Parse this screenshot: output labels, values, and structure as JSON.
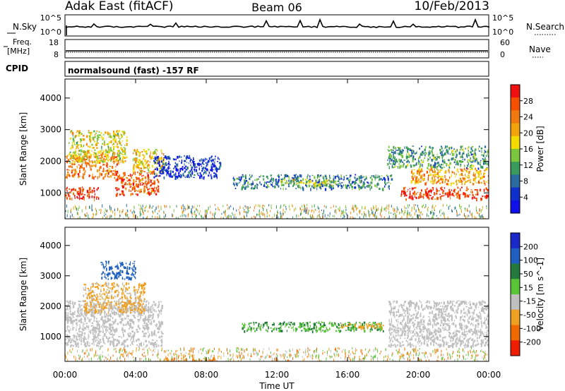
{
  "header": {
    "site": "Adak East (fitACF)",
    "beam": "Beam 06",
    "date": "10/Feb/2013"
  },
  "top_panels": {
    "nsky_label": "N.Sky",
    "nsearch_label": "N.Search",
    "nsky_ticks": [
      "10^5",
      "10^0"
    ],
    "nsearch_ticks": [
      "10^5",
      "10^0"
    ],
    "freq_label_line1": "Freq.",
    "freq_label_line2": "[MHz]",
    "freq_ticks": [
      "18",
      "8"
    ],
    "nave_label": "Nave",
    "nave_ticks": [
      "60",
      "0"
    ],
    "cpid_label": "CPID",
    "cpid_text": "normalsound (fast) -157 RF"
  },
  "x_axis": {
    "label": "Time UT",
    "ticks": [
      "00:00",
      "04:00",
      "08:00",
      "12:00",
      "16:00",
      "20:00",
      "00:00"
    ]
  },
  "chart_data": [
    {
      "type": "heatmap",
      "title": "Power",
      "ylabel": "Slant Range [km]",
      "xlabel": "",
      "x_range_hours": [
        0,
        24
      ],
      "ylim": [
        180,
        4600
      ],
      "y_ticks": [
        1000,
        2000,
        3000,
        4000
      ],
      "colorbar": {
        "label": "Power [dB]",
        "tick_labels": [
          "28",
          "24",
          "20",
          "16",
          "12",
          "8",
          "4"
        ],
        "colors": [
          "#f01010",
          "#f55000",
          "#f07a10",
          "#f2a20a",
          "#f2dc00",
          "#7cc63e",
          "#3a9a5c",
          "#2a6a9e",
          "#1030cc",
          "#1010e8"
        ]
      },
      "regions": [
        {
          "t": [
            0.0,
            1.9
          ],
          "r": [
            820,
            1200
          ],
          "level": 28
        },
        {
          "t": [
            0.0,
            3.0
          ],
          "r": [
            1500,
            2200
          ],
          "level": 24
        },
        {
          "t": [
            0.2,
            3.5
          ],
          "r": [
            2000,
            3000
          ],
          "level": 18
        },
        {
          "t": [
            2.8,
            5.3
          ],
          "r": [
            950,
            1700
          ],
          "level": 26
        },
        {
          "t": [
            3.8,
            5.6
          ],
          "r": [
            1700,
            2400
          ],
          "level": 20
        },
        {
          "t": [
            5.0,
            8.8
          ],
          "r": [
            1500,
            2200
          ],
          "level": 6
        },
        {
          "t": [
            9.5,
            18.5
          ],
          "r": [
            1150,
            1600
          ],
          "level": 10
        },
        {
          "t": [
            12.2,
            15.5
          ],
          "r": [
            1250,
            1450
          ],
          "level": 16
        },
        {
          "t": [
            18.2,
            24.0
          ],
          "r": [
            1800,
            2500
          ],
          "level": 12
        },
        {
          "t": [
            19.0,
            24.0
          ],
          "r": [
            820,
            1200
          ],
          "level": 28
        },
        {
          "t": [
            19.5,
            24.0
          ],
          "r": [
            1300,
            1800
          ],
          "level": 22
        }
      ]
    },
    {
      "type": "heatmap",
      "title": "Velocity",
      "ylabel": "Slant Range [km]",
      "xlabel": "Time UT",
      "x_range_hours": [
        0,
        24
      ],
      "ylim": [
        180,
        4600
      ],
      "y_ticks": [
        1000,
        2000,
        3000,
        4000
      ],
      "colorbar": {
        "label": "Velocity [m s^-1]",
        "tick_labels": [
          "200",
          "100",
          "50",
          "15",
          "-15",
          "-50",
          "-100",
          "-200"
        ],
        "colors": [
          "#1a28c8",
          "#1f5fbf",
          "#237a3c",
          "#58c436",
          "#bfbfbf",
          "#f0a020",
          "#f06a00",
          "#ee1c00"
        ]
      },
      "regions": [
        {
          "t": [
            0.0,
            5.5
          ],
          "r": [
            700,
            2200
          ],
          "level": 0
        },
        {
          "t": [
            1.0,
            4.5
          ],
          "r": [
            1800,
            2800
          ],
          "level": -20
        },
        {
          "t": [
            2.0,
            4.0
          ],
          "r": [
            2900,
            3500
          ],
          "level": 120
        },
        {
          "t": [
            10.0,
            18.0
          ],
          "r": [
            1200,
            1500
          ],
          "level": 30
        },
        {
          "t": [
            15.5,
            18.0
          ],
          "r": [
            1300,
            1450
          ],
          "level": -40
        },
        {
          "t": [
            18.3,
            24.0
          ],
          "r": [
            700,
            2200
          ],
          "level": 0
        },
        {
          "t": [
            5.5,
            8.5
          ],
          "r": [
            200,
            320
          ],
          "level": -60
        }
      ]
    }
  ]
}
